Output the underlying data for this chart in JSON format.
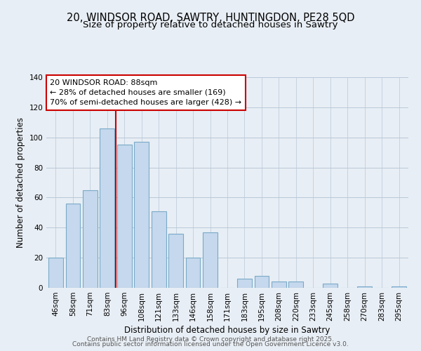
{
  "title": "20, WINDSOR ROAD, SAWTRY, HUNTINGDON, PE28 5QD",
  "subtitle": "Size of property relative to detached houses in Sawtry",
  "xlabel": "Distribution of detached houses by size in Sawtry",
  "ylabel": "Number of detached properties",
  "categories": [
    "46sqm",
    "58sqm",
    "71sqm",
    "83sqm",
    "96sqm",
    "108sqm",
    "121sqm",
    "133sqm",
    "146sqm",
    "158sqm",
    "171sqm",
    "183sqm",
    "195sqm",
    "208sqm",
    "220sqm",
    "233sqm",
    "245sqm",
    "258sqm",
    "270sqm",
    "283sqm",
    "295sqm"
  ],
  "values": [
    20,
    56,
    65,
    106,
    95,
    97,
    51,
    36,
    20,
    37,
    0,
    6,
    8,
    4,
    4,
    0,
    3,
    0,
    1,
    0,
    1
  ],
  "bar_color": "#c5d8ed",
  "bar_edge_color": "#7aaac8",
  "vline_position": 3.5,
  "vline_color": "#cc0000",
  "annotation_box_text": "20 WINDSOR ROAD: 88sqm\n← 28% of detached houses are smaller (169)\n70% of semi-detached houses are larger (428) →",
  "ylim": [
    0,
    140
  ],
  "yticks": [
    0,
    20,
    40,
    60,
    80,
    100,
    120,
    140
  ],
  "footer1": "Contains HM Land Registry data © Crown copyright and database right 2025.",
  "footer2": "Contains public sector information licensed under the Open Government Licence v3.0.",
  "title_fontsize": 10.5,
  "subtitle_fontsize": 9.5,
  "axis_label_fontsize": 8.5,
  "tick_fontsize": 7.5,
  "annotation_fontsize": 8,
  "footer_fontsize": 6.5,
  "bg_color": "#e8eef5"
}
